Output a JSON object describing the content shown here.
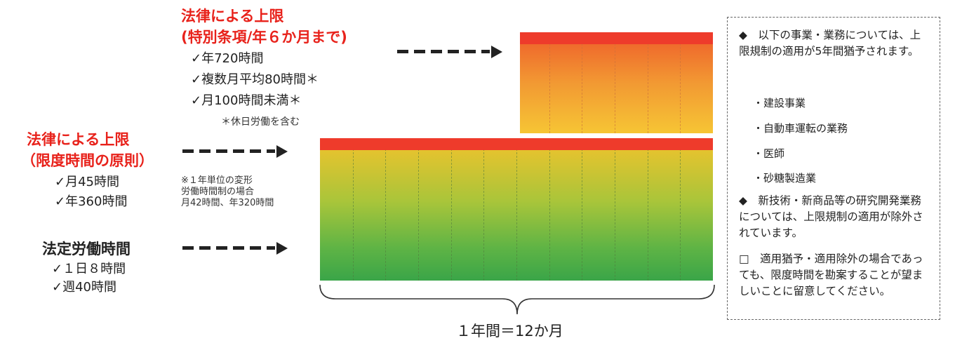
{
  "special_limit": {
    "title_line1": "法律による上限",
    "title_line2": "(特別条項/年６か月まで)",
    "items": [
      "✓年720時間",
      "✓複数月平均80時間＊",
      "✓月100時間未満＊"
    ],
    "note": "＊休日労働を含む"
  },
  "principle_limit": {
    "title_line1": "法律による上限",
    "title_line2": "（限度時間の原則）",
    "items": [
      "✓月45時間",
      "✓年360時間"
    ],
    "note_lines": [
      "※１年単位の変形",
      "労働時間制の場合",
      "月42時間、年320時間"
    ]
  },
  "statutory_hours": {
    "title": "法定労働時間",
    "items": [
      "✓１日８時間",
      "✓週40時間"
    ]
  },
  "year_label": "１年間＝12か月",
  "side_panel": {
    "para1": "◆　以下の事業・業務については、上限規制の適用が5年間猶予されます。",
    "sub_items": [
      "・建設事業",
      "・自動車運転の業務",
      "・医師",
      "・砂糖製造業"
    ],
    "para2": "◆　新技術・新商品等の研究開発業務については、上限規制の適用が除外されています。",
    "para3": "□　適用猶予・適用除外の場合であっても、限度時間を勘案することが望ましいことに留意してください。"
  },
  "colors": {
    "accent_red": "#e8221b",
    "cap_red": "#ee3b2b",
    "bar_green": "#3aa548",
    "bar_yellow": "#e6c32e",
    "bar_orange": "#f29a33"
  }
}
